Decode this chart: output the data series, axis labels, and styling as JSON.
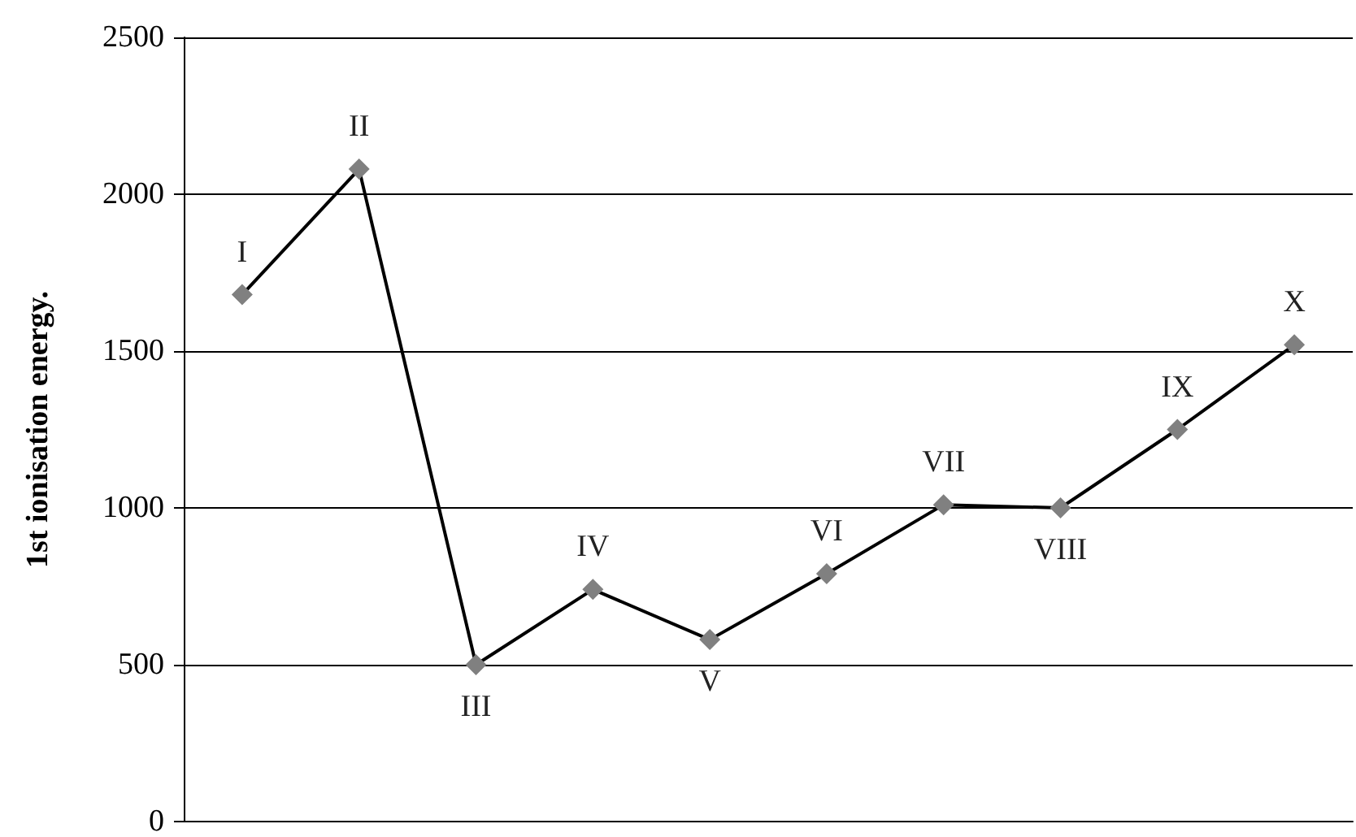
{
  "chart_data": {
    "type": "line",
    "ylabel": "1st ionisation energy.",
    "categories": [
      "I",
      "II",
      "III",
      "IV",
      "V",
      "VI",
      "VII",
      "VIII",
      "IX",
      "X"
    ],
    "series": [
      {
        "color": "#000000",
        "values": [
          1680,
          2080,
          500,
          740,
          580,
          790,
          1010,
          1000,
          1250,
          1520
        ]
      }
    ],
    "marker": "diamond",
    "line_style": "solid",
    "ylim": [
      0,
      2500
    ],
    "yticks": [
      0,
      500,
      1000,
      1500,
      2000,
      2500
    ],
    "grid": "y",
    "tick_labels": "y"
  }
}
